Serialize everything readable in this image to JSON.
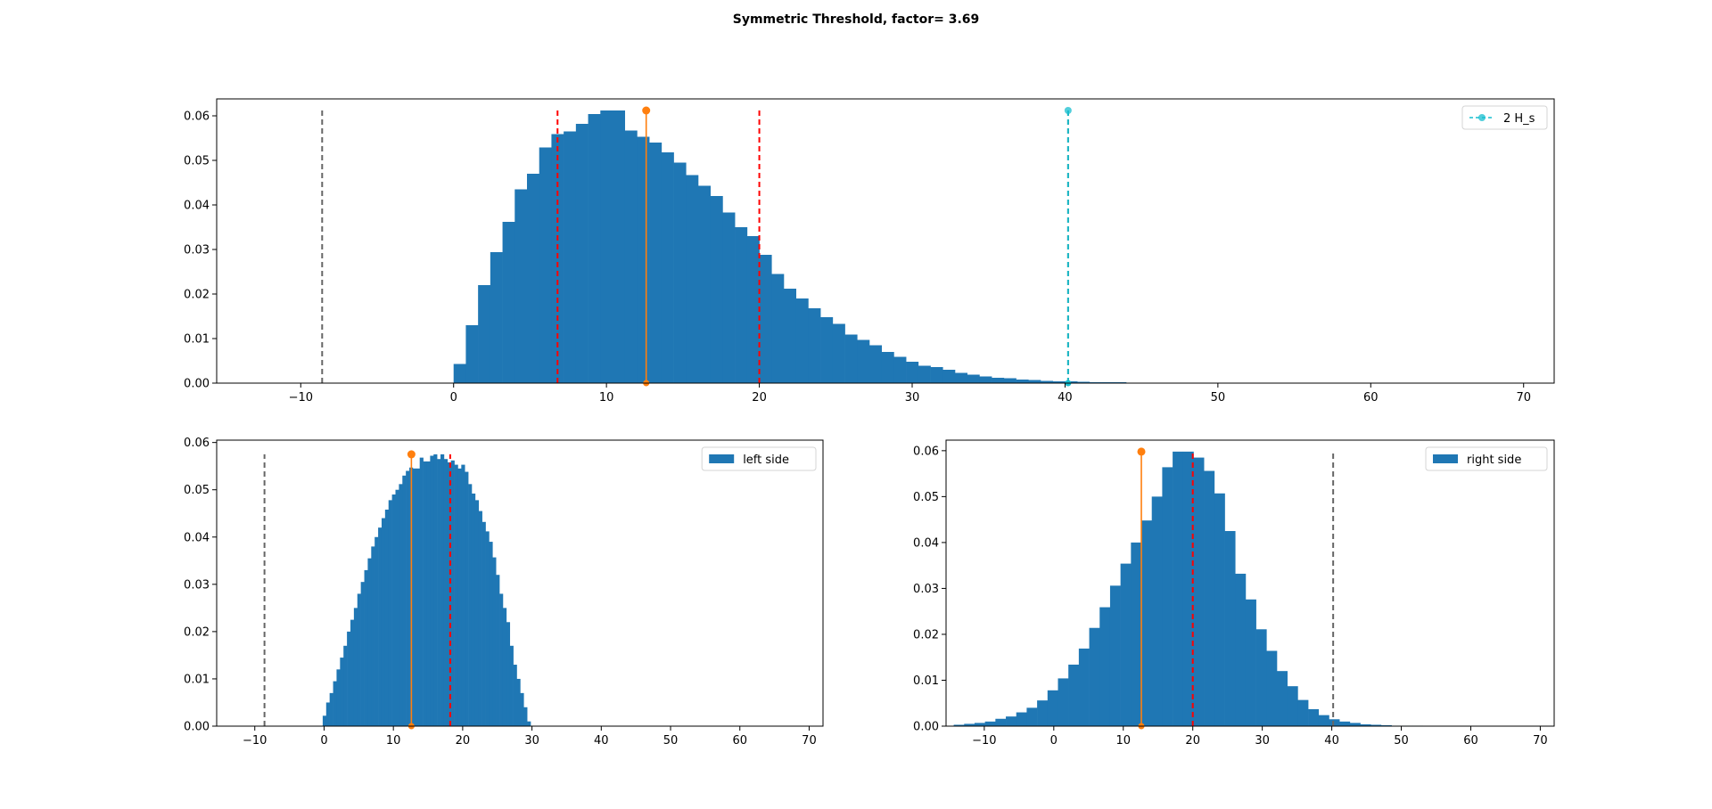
{
  "figure": {
    "title": "Symmetric Threshold, factor= 3.69"
  },
  "colors": {
    "bar": "#1f77b4",
    "mean": "#ff7f0e",
    "threshold": "#ff0000",
    "neg_limit": "#666666",
    "hs_marker": "#17becf",
    "hs_line": "#008080"
  },
  "chart_data": [
    {
      "id": "top",
      "type": "bar",
      "title": "",
      "xlabel": "",
      "ylabel": "",
      "xlim": [
        -15.5,
        72
      ],
      "ylim": [
        0,
        0.0638
      ],
      "xticks": [
        -10,
        0,
        10,
        20,
        30,
        40,
        50,
        60,
        70
      ],
      "yticks": [
        0.0,
        0.01,
        0.02,
        0.03,
        0.04,
        0.05,
        0.06
      ],
      "ytick_decimals": 2,
      "bin_start": 0,
      "bin_width": 0.8,
      "values": [
        0.0043,
        0.013,
        0.022,
        0.0294,
        0.0362,
        0.0435,
        0.047,
        0.0529,
        0.0559,
        0.0565,
        0.0582,
        0.0604,
        0.0612,
        0.0612,
        0.0567,
        0.0553,
        0.054,
        0.0518,
        0.0495,
        0.0467,
        0.0443,
        0.042,
        0.0383,
        0.035,
        0.033,
        0.0288,
        0.0245,
        0.0212,
        0.019,
        0.0168,
        0.0148,
        0.0133,
        0.0109,
        0.0097,
        0.0085,
        0.007,
        0.0059,
        0.0048,
        0.0039,
        0.0036,
        0.003,
        0.0023,
        0.0019,
        0.0015,
        0.0012,
        0.0011,
        0.0008,
        0.0007,
        0.0005,
        0.0004,
        0.0004,
        0.0003,
        0.0002,
        0.0002,
        0.0002,
        0.0001,
        0.0001,
        0.0001,
        0.0001
      ],
      "vlines": [
        {
          "x": -8.6,
          "ymax": 0.0612,
          "color": "#666666",
          "style": "dashed"
        },
        {
          "x": 6.8,
          "ymax": 0.0612,
          "color": "#ff0000",
          "style": "dashed"
        },
        {
          "x": 20.0,
          "ymax": 0.0612,
          "color": "#ff0000",
          "style": "dashed"
        },
        {
          "x": 40.2,
          "ymax": 0.0612,
          "color": "#008080",
          "style": "dashed"
        }
      ],
      "stems": [
        {
          "x": 12.6,
          "y": 0.0612,
          "color": "#ff7f0e",
          "style": "solid"
        },
        {
          "x": 40.2,
          "y": 0.0612,
          "color": "#17becf",
          "style": "dashed"
        }
      ],
      "legend": {
        "position": "top-right",
        "label": "2 H_s",
        "kind": "line-marker",
        "color": "#17becf"
      }
    },
    {
      "id": "left",
      "type": "bar",
      "title": "",
      "xlabel": "",
      "ylabel": "",
      "xlim": [
        -15.5,
        72
      ],
      "ylim": [
        0,
        0.0605
      ],
      "xticks": [
        -10,
        0,
        10,
        20,
        30,
        40,
        50,
        60,
        70
      ],
      "yticks": [
        0.0,
        0.01,
        0.02,
        0.03,
        0.04,
        0.05,
        0.06
      ],
      "ytick_decimals": 2,
      "bin_start": -0.2,
      "bin_width": 0.5,
      "values": [
        0.0022,
        0.005,
        0.007,
        0.0095,
        0.012,
        0.0145,
        0.017,
        0.02,
        0.0225,
        0.025,
        0.028,
        0.0305,
        0.033,
        0.0355,
        0.038,
        0.04,
        0.042,
        0.044,
        0.0458,
        0.0478,
        0.049,
        0.05,
        0.0512,
        0.053,
        0.054,
        0.0547,
        0.0545,
        0.0545,
        0.0568,
        0.056,
        0.056,
        0.0572,
        0.0575,
        0.0565,
        0.0575,
        0.0565,
        0.0558,
        0.0562,
        0.0553,
        0.0545,
        0.0553,
        0.0538,
        0.0512,
        0.0492,
        0.0478,
        0.0455,
        0.0432,
        0.0412,
        0.039,
        0.0357,
        0.032,
        0.028,
        0.025,
        0.022,
        0.017,
        0.013,
        0.01,
        0.007,
        0.004,
        0.001
      ],
      "vlines": [
        {
          "x": -8.6,
          "ymax": 0.0575,
          "color": "#666666",
          "style": "dashed"
        },
        {
          "x": 18.2,
          "ymax": 0.0575,
          "color": "#ff0000",
          "style": "dashed"
        }
      ],
      "stems": [
        {
          "x": 12.6,
          "y": 0.0575,
          "color": "#ff7f0e",
          "style": "solid"
        }
      ],
      "legend": {
        "position": "top-right",
        "label": "left side",
        "kind": "patch",
        "color": "#1f77b4"
      }
    },
    {
      "id": "right",
      "type": "bar",
      "title": "",
      "xlabel": "",
      "ylabel": "",
      "xlim": [
        -15.5,
        72
      ],
      "ylim": [
        0,
        0.0623
      ],
      "xticks": [
        -10,
        0,
        10,
        20,
        30,
        40,
        50,
        60,
        70
      ],
      "yticks": [
        0.0,
        0.01,
        0.02,
        0.03,
        0.04,
        0.05,
        0.06
      ],
      "ytick_decimals": 2,
      "bin_start": -14.4,
      "bin_width": 1.5,
      "values": [
        0.0003,
        0.0005,
        0.0007,
        0.001,
        0.0016,
        0.0021,
        0.003,
        0.004,
        0.0056,
        0.0078,
        0.0104,
        0.0134,
        0.0169,
        0.0214,
        0.0259,
        0.0306,
        0.0354,
        0.04,
        0.0448,
        0.05,
        0.0564,
        0.0598,
        0.0598,
        0.0585,
        0.0556,
        0.0507,
        0.0425,
        0.0332,
        0.0276,
        0.0211,
        0.0164,
        0.012,
        0.0087,
        0.0057,
        0.0037,
        0.0024,
        0.0015,
        0.001,
        0.0007,
        0.0004,
        0.0003,
        0.0002,
        0.0001,
        0.0001,
        0.0001
      ],
      "vlines": [
        {
          "x": 20.0,
          "ymax": 0.0598,
          "color": "#ff0000",
          "style": "dashed"
        },
        {
          "x": 40.2,
          "ymax": 0.0598,
          "color": "#666666",
          "style": "dashed"
        }
      ],
      "stems": [
        {
          "x": 12.6,
          "y": 0.0598,
          "color": "#ff7f0e",
          "style": "solid"
        }
      ],
      "legend": {
        "position": "top-right",
        "label": "right side",
        "kind": "patch",
        "color": "#1f77b4"
      }
    }
  ]
}
